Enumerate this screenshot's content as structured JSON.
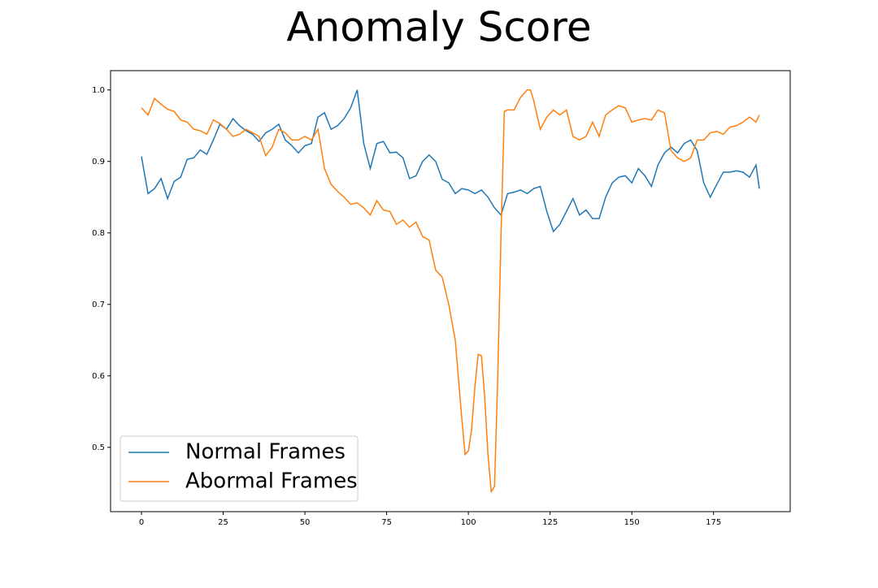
{
  "chart_data": {
    "type": "line",
    "title": "Anomaly Score",
    "xlim": [
      -9.45,
      198.45
    ],
    "ylim": [
      0.41,
      1.027
    ],
    "xticks": [
      0,
      25,
      50,
      75,
      100,
      125,
      150,
      175
    ],
    "yticks": [
      0.5,
      0.6,
      0.7,
      0.8,
      0.9,
      {
        "value": 1,
        "label": "1.0"
      }
    ],
    "legend": "lower left",
    "series": [
      {
        "name": "Normal Frames",
        "color": "#1f77b4",
        "x": [
          0,
          2,
          4,
          6,
          8,
          10,
          12,
          14,
          16,
          18,
          20,
          22,
          24,
          26,
          28,
          30,
          32,
          34,
          36,
          38,
          40,
          42,
          44,
          46,
          48,
          50,
          52,
          54,
          56,
          58,
          60,
          62,
          64,
          66,
          68,
          70,
          72,
          74,
          76,
          78,
          80,
          82,
          84,
          86,
          88,
          90,
          92,
          94,
          96,
          98,
          100,
          102,
          104,
          106,
          108,
          110,
          112,
          114,
          116,
          118,
          120,
          122,
          124,
          126,
          128,
          130,
          132,
          134,
          136,
          138,
          140,
          142,
          144,
          146,
          148,
          150,
          152,
          154,
          156,
          158,
          160,
          162,
          164,
          166,
          168,
          170,
          172,
          174,
          176,
          178,
          180,
          182,
          184,
          186,
          188,
          189
        ],
        "values": [
          0.907,
          0.855,
          0.862,
          0.876,
          0.848,
          0.872,
          0.878,
          0.903,
          0.905,
          0.916,
          0.91,
          0.93,
          0.952,
          0.945,
          0.96,
          0.95,
          0.943,
          0.938,
          0.928,
          0.94,
          0.945,
          0.952,
          0.93,
          0.922,
          0.912,
          0.922,
          0.925,
          0.962,
          0.968,
          0.945,
          0.95,
          0.96,
          0.975,
          1.0,
          0.925,
          0.89,
          0.925,
          0.928,
          0.912,
          0.913,
          0.905,
          0.876,
          0.88,
          0.9,
          0.909,
          0.9,
          0.875,
          0.87,
          0.855,
          0.862,
          0.86,
          0.855,
          0.86,
          0.85,
          0.835,
          0.825,
          0.855,
          0.857,
          0.86,
          0.855,
          0.862,
          0.865,
          0.83,
          0.802,
          0.812,
          0.83,
          0.848,
          0.825,
          0.832,
          0.82,
          0.82,
          0.85,
          0.87,
          0.878,
          0.88,
          0.87,
          0.89,
          0.88,
          0.865,
          0.895,
          0.912,
          0.92,
          0.912,
          0.925,
          0.93,
          0.915,
          0.87,
          0.85,
          0.868,
          0.885,
          0.885,
          0.887,
          0.885,
          0.878,
          0.895,
          0.862
        ]
      },
      {
        "name": "Abormal Frames",
        "color": "#ff7f0e",
        "x": [
          0,
          2,
          4,
          6,
          8,
          10,
          12,
          14,
          16,
          18,
          20,
          22,
          24,
          26,
          28,
          30,
          32,
          34,
          36,
          38,
          40,
          42,
          44,
          46,
          48,
          50,
          52,
          54,
          56,
          58,
          60,
          62,
          64,
          66,
          68,
          70,
          72,
          74,
          76,
          78,
          80,
          82,
          84,
          86,
          88,
          90,
          92,
          94,
          96,
          98,
          99,
          100,
          101,
          102,
          103,
          104,
          105,
          106,
          107,
          108,
          109,
          110,
          111,
          112,
          114,
          116,
          118,
          119,
          120,
          122,
          124,
          126,
          128,
          130,
          132,
          134,
          136,
          138,
          140,
          142,
          144,
          146,
          148,
          150,
          152,
          154,
          156,
          158,
          160,
          162,
          164,
          166,
          168,
          170,
          172,
          174,
          176,
          178,
          180,
          182,
          184,
          186,
          188,
          189
        ],
        "values": [
          0.975,
          0.965,
          0.988,
          0.98,
          0.973,
          0.97,
          0.958,
          0.955,
          0.945,
          0.943,
          0.938,
          0.958,
          0.953,
          0.945,
          0.935,
          0.938,
          0.945,
          0.94,
          0.935,
          0.908,
          0.92,
          0.945,
          0.94,
          0.93,
          0.93,
          0.935,
          0.93,
          0.945,
          0.89,
          0.868,
          0.858,
          0.85,
          0.84,
          0.842,
          0.835,
          0.825,
          0.845,
          0.832,
          0.83,
          0.812,
          0.818,
          0.808,
          0.815,
          0.795,
          0.79,
          0.748,
          0.738,
          0.7,
          0.65,
          0.54,
          0.49,
          0.495,
          0.525,
          0.585,
          0.63,
          0.628,
          0.57,
          0.49,
          0.438,
          0.445,
          0.6,
          0.8,
          0.97,
          0.972,
          0.972,
          0.99,
          1.0,
          1.0,
          0.985,
          0.945,
          0.962,
          0.972,
          0.965,
          0.972,
          0.935,
          0.93,
          0.935,
          0.955,
          0.935,
          0.965,
          0.972,
          0.978,
          0.975,
          0.955,
          0.958,
          0.96,
          0.958,
          0.972,
          0.968,
          0.915,
          0.905,
          0.9,
          0.905,
          0.93,
          0.93,
          0.94,
          0.942,
          0.938,
          0.948,
          0.95,
          0.955,
          0.962,
          0.955,
          0.965
        ]
      }
    ]
  }
}
